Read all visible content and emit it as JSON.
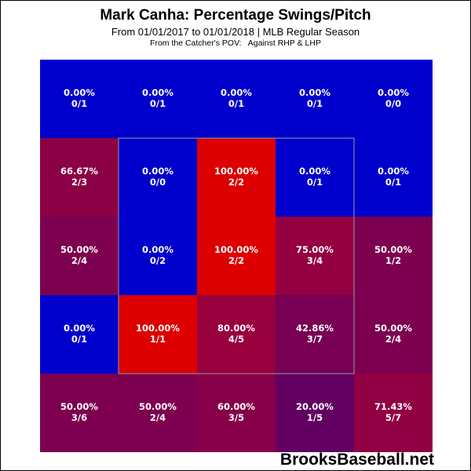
{
  "chart_data": {
    "type": "heatmap",
    "title": "Mark Canha: Percentage Swings/Pitch",
    "subtitle": "From 01/01/2017 to 01/01/2018 | MLB Regular Season",
    "subtitle2": "From the Catcher's POV:   Against RHP & LHP",
    "xlabel": "",
    "ylabel": "",
    "strike_zone": "inner 3x3 outlined",
    "color_scale": {
      "low": "#0000cc",
      "high": "#dd0000"
    },
    "rows": [
      [
        {
          "pct": "0.00%",
          "count": "0/1",
          "value": 0
        },
        {
          "pct": "0.00%",
          "count": "0/1",
          "value": 0
        },
        {
          "pct": "0.00%",
          "count": "0/1",
          "value": 0
        },
        {
          "pct": "0.00%",
          "count": "0/1",
          "value": 0
        },
        {
          "pct": "0.00%",
          "count": "0/0",
          "value": 0
        }
      ],
      [
        {
          "pct": "66.67%",
          "count": "2/3",
          "value": 66.67
        },
        {
          "pct": "0.00%",
          "count": "0/0",
          "value": 0
        },
        {
          "pct": "100.00%",
          "count": "2/2",
          "value": 100
        },
        {
          "pct": "0.00%",
          "count": "0/1",
          "value": 0
        },
        {
          "pct": "0.00%",
          "count": "0/1",
          "value": 0
        }
      ],
      [
        {
          "pct": "50.00%",
          "count": "2/4",
          "value": 50
        },
        {
          "pct": "0.00%",
          "count": "0/2",
          "value": 0
        },
        {
          "pct": "100.00%",
          "count": "2/2",
          "value": 100
        },
        {
          "pct": "75.00%",
          "count": "3/4",
          "value": 75
        },
        {
          "pct": "50.00%",
          "count": "1/2",
          "value": 50
        }
      ],
      [
        {
          "pct": "0.00%",
          "count": "0/1",
          "value": 0
        },
        {
          "pct": "100.00%",
          "count": "1/1",
          "value": 100
        },
        {
          "pct": "80.00%",
          "count": "4/5",
          "value": 80
        },
        {
          "pct": "42.86%",
          "count": "3/7",
          "value": 42.86
        },
        {
          "pct": "50.00%",
          "count": "2/4",
          "value": 50
        }
      ],
      [
        {
          "pct": "50.00%",
          "count": "3/6",
          "value": 50
        },
        {
          "pct": "50.00%",
          "count": "2/4",
          "value": 50
        },
        {
          "pct": "60.00%",
          "count": "3/5",
          "value": 60
        },
        {
          "pct": "20.00%",
          "count": "1/5",
          "value": 20
        },
        {
          "pct": "71.43%",
          "count": "5/7",
          "value": 71.43
        }
      ]
    ]
  },
  "watermark": "BrooksBaseball.net"
}
